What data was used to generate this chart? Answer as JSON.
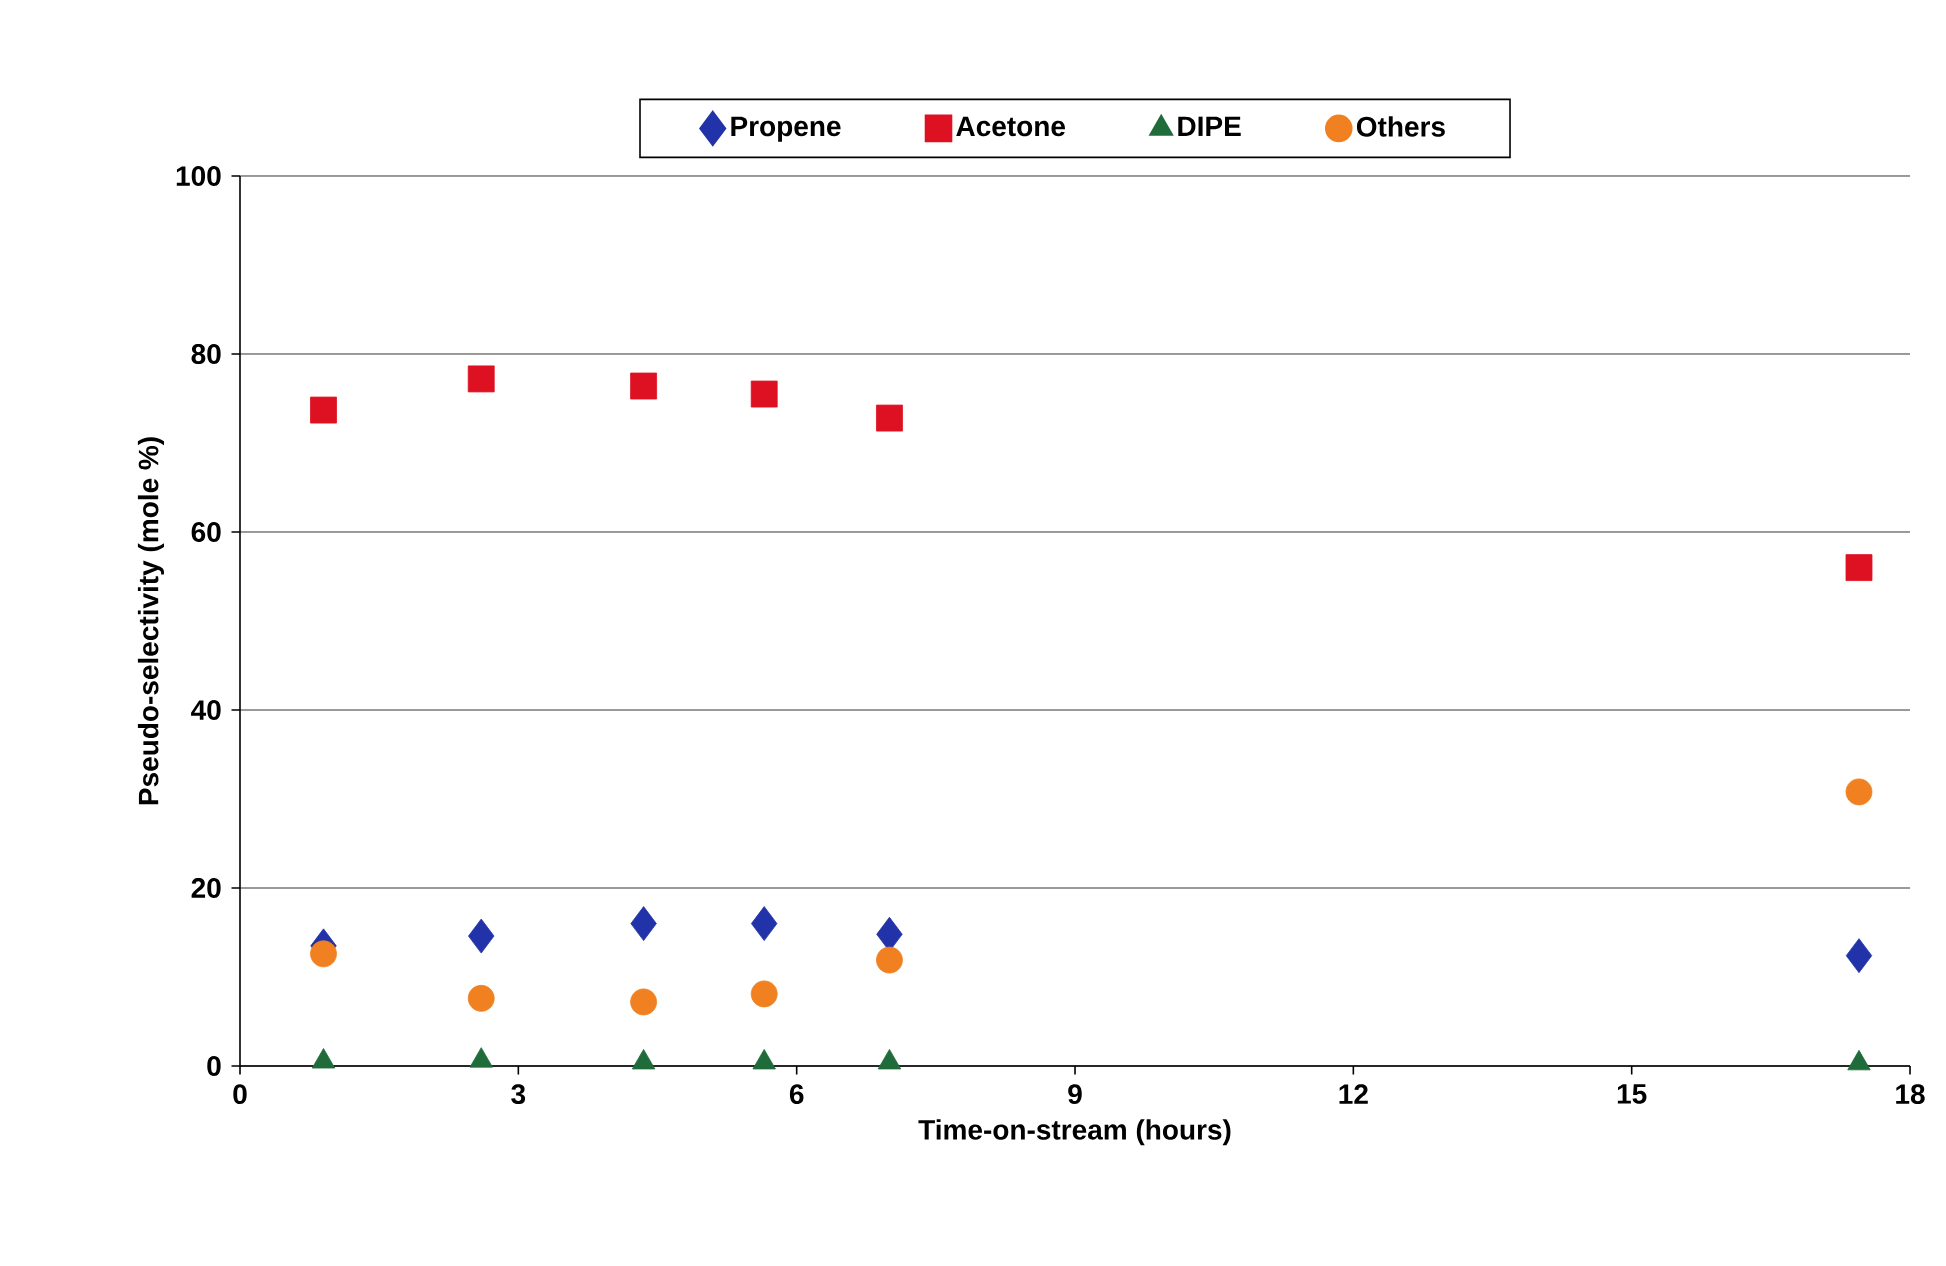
{
  "chart_data": {
    "type": "scatter",
    "xlabel": "Time-on-stream (hours)",
    "ylabel": "Pseudo-selectivity (mole %)",
    "x": [
      0.9,
      2.6,
      4.35,
      5.65,
      7.0,
      17.45
    ],
    "series": [
      {
        "name": "Propene",
        "color": "#2233aa",
        "marker": "diamond",
        "values": [
          13.5,
          14.6,
          16.0,
          16.0,
          14.8,
          12.4
        ]
      },
      {
        "name": "Acetone",
        "color": "#dd1122",
        "marker": "square",
        "values": [
          73.7,
          77.2,
          76.4,
          75.5,
          72.8,
          56.0
        ]
      },
      {
        "name": "DIPE",
        "color": "#1f6b3a",
        "marker": "triangle",
        "values": [
          0.5,
          0.6,
          0.4,
          0.4,
          0.4,
          0.3
        ]
      },
      {
        "name": "Others",
        "color": "#f08020",
        "marker": "circle",
        "values": [
          12.6,
          7.6,
          7.2,
          8.1,
          11.9,
          30.8
        ]
      }
    ],
    "xlim": [
      0,
      18
    ],
    "ylim": [
      0,
      100
    ],
    "xticks": [
      0,
      3,
      6,
      9,
      12,
      15,
      18
    ],
    "yticks": [
      0,
      20,
      40,
      60,
      80,
      100
    ],
    "grid": "y",
    "legend": "top"
  }
}
